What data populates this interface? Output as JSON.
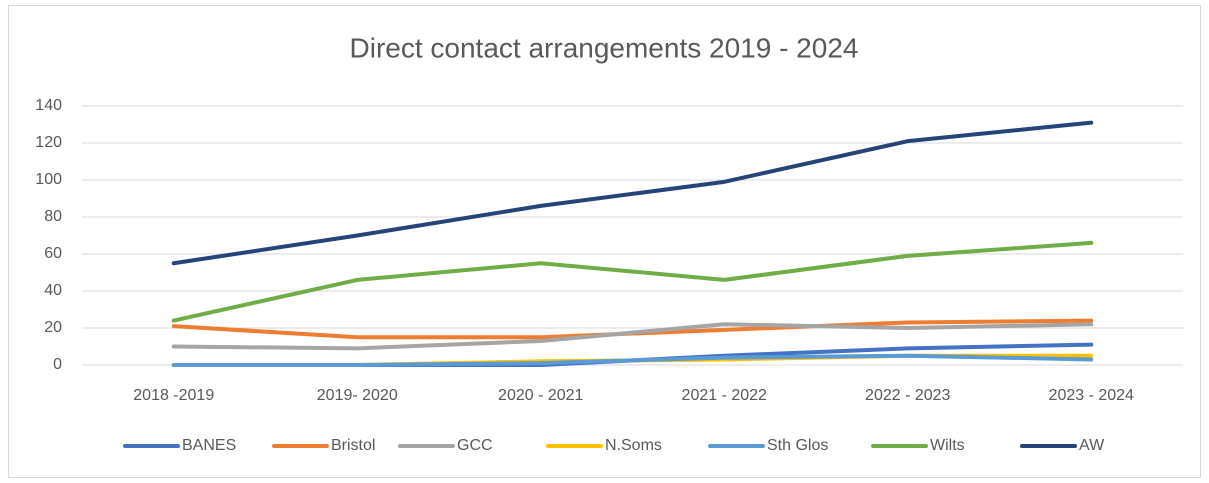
{
  "chart_data": {
    "type": "line",
    "title": "Direct contact arrangements 2019 - 2024",
    "categories": [
      "2018 -2019",
      "2019- 2020",
      "2020 - 2021",
      "2021 - 2022",
      "2022 - 2023",
      "2023 - 2024"
    ],
    "series": [
      {
        "name": "BANES",
        "color": "#4472c4",
        "values": [
          0,
          0,
          0,
          5,
          9,
          11
        ]
      },
      {
        "name": "Bristol",
        "color": "#ed7d31",
        "values": [
          21,
          15,
          15,
          19,
          23,
          24
        ]
      },
      {
        "name": "GCC",
        "color": "#a5a5a5",
        "values": [
          10,
          9,
          13,
          22,
          20,
          22
        ]
      },
      {
        "name": "N.Soms",
        "color": "#ffc000",
        "values": [
          0,
          0,
          2,
          3,
          5,
          5
        ]
      },
      {
        "name": "Sth Glos",
        "color": "#5b9bd5",
        "values": [
          0,
          0,
          1,
          4,
          5,
          3
        ]
      },
      {
        "name": "Wilts",
        "color": "#70ad47",
        "values": [
          24,
          46,
          55,
          46,
          59,
          66
        ]
      },
      {
        "name": "AW",
        "color": "#264478",
        "values": [
          55,
          70,
          86,
          99,
          121,
          131
        ]
      }
    ],
    "ylim": [
      0,
      140
    ],
    "yticks": [
      0,
      20,
      40,
      60,
      80,
      100,
      120,
      140
    ],
    "grid": true,
    "legend": "bottom"
  }
}
